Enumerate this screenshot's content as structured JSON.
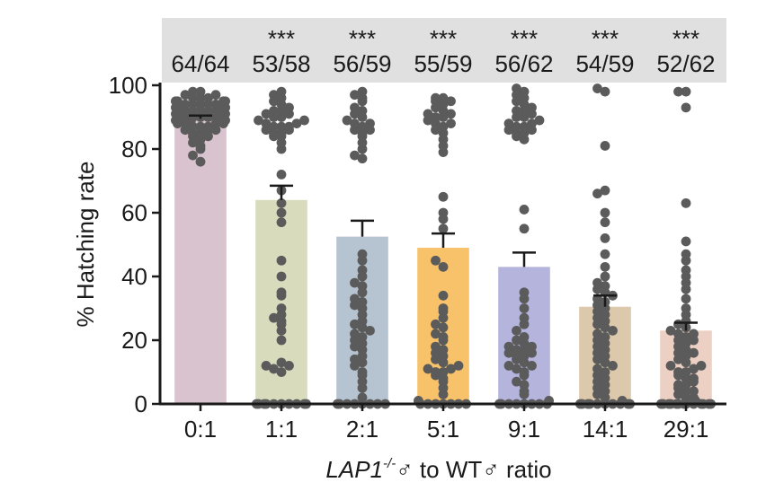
{
  "chart_data": {
    "type": "bar",
    "categories": [
      "0:1",
      "1:1",
      "2:1",
      "5:1",
      "9:1",
      "14:1",
      "29:1"
    ],
    "values": [
      89.5,
      64,
      52.5,
      49,
      43,
      30.5,
      23
    ],
    "error": [
      1,
      4.5,
      5,
      4.5,
      4.5,
      3.5,
      2.5
    ],
    "colors": [
      "#d8c3cf",
      "#d8dcbd",
      "#b6c3d1",
      "#f7c26a",
      "#b5b4dd",
      "#dcc8aa",
      "#ecd0c3"
    ],
    "counts": [
      "64/64",
      "53/58",
      "56/59",
      "55/59",
      "56/62",
      "54/59",
      "52/62"
    ],
    "significance": [
      "",
      "***",
      "***",
      "***",
      "***",
      "***",
      "***"
    ],
    "points": [
      [
        76,
        78,
        80,
        81,
        82,
        83,
        84,
        84,
        85,
        85,
        86,
        86,
        86,
        87,
        87,
        87,
        88,
        88,
        88,
        88,
        89,
        89,
        89,
        89,
        89,
        90,
        90,
        90,
        90,
        90,
        90,
        91,
        91,
        91,
        91,
        91,
        91,
        92,
        92,
        92,
        92,
        92,
        92,
        93,
        93,
        93,
        93,
        93,
        94,
        94,
        94,
        94,
        94,
        95,
        95,
        95,
        95,
        96,
        96,
        96,
        97,
        97,
        98,
        98
      ],
      [
        0,
        0,
        0,
        0,
        0,
        0,
        0,
        0,
        0,
        0,
        10,
        11,
        12,
        12,
        13,
        20,
        23,
        25,
        26,
        27,
        28,
        30,
        34,
        35,
        40,
        45,
        57,
        60,
        63,
        67,
        72,
        80,
        82,
        84,
        84,
        85,
        85,
        86,
        86,
        87,
        87,
        87,
        88,
        88,
        89,
        89,
        90,
        90,
        91,
        91,
        92,
        92,
        93,
        94,
        95,
        96,
        97,
        98
      ],
      [
        0,
        0,
        0,
        0,
        0,
        0,
        0,
        0,
        2,
        5,
        7,
        9,
        10,
        12,
        13,
        14,
        15,
        17,
        18,
        19,
        20,
        21,
        22,
        23,
        24,
        25,
        26,
        28,
        30,
        31,
        32,
        33,
        35,
        37,
        38,
        40,
        42,
        45,
        47,
        77,
        78,
        80,
        82,
        84,
        85,
        86,
        86,
        87,
        88,
        88,
        89,
        90,
        91,
        92,
        93,
        95,
        96,
        97,
        98
      ],
      [
        0,
        0,
        0,
        0,
        0,
        0,
        0,
        1,
        3,
        5,
        7,
        8,
        9,
        10,
        10,
        11,
        11,
        12,
        13,
        14,
        15,
        16,
        17,
        18,
        20,
        21,
        22,
        24,
        25,
        27,
        29,
        30,
        34,
        43,
        45,
        55,
        58,
        60,
        65,
        79,
        81,
        83,
        85,
        86,
        87,
        88,
        88,
        89,
        90,
        90,
        91,
        91,
        92,
        93,
        94,
        95,
        95,
        96,
        96
      ],
      [
        0,
        0,
        0,
        0,
        0,
        0,
        0,
        0,
        1,
        3,
        4,
        6,
        7,
        9,
        10,
        11,
        12,
        12,
        13,
        14,
        15,
        15,
        16,
        16,
        17,
        17,
        18,
        18,
        19,
        20,
        21,
        23,
        25,
        27,
        30,
        33,
        35,
        55,
        61,
        83,
        84,
        85,
        85,
        86,
        86,
        87,
        87,
        88,
        88,
        89,
        90,
        90,
        91,
        92,
        92,
        93,
        94,
        95,
        96,
        97,
        98,
        99
      ],
      [
        0,
        0,
        0,
        0,
        0,
        0,
        0,
        0,
        0,
        0,
        1,
        2,
        3,
        4,
        5,
        6,
        7,
        8,
        9,
        10,
        11,
        12,
        13,
        14,
        15,
        16,
        17,
        18,
        19,
        20,
        21,
        22,
        23,
        24,
        25,
        26,
        27,
        28,
        29,
        30,
        31,
        32,
        33,
        34,
        35,
        36,
        37,
        38,
        40,
        43,
        47,
        52,
        57,
        60,
        67,
        66,
        81,
        98,
        99
      ],
      [
        0,
        0,
        0,
        0,
        0,
        0,
        0,
        0,
        0,
        0,
        0,
        0,
        1,
        2,
        3,
        4,
        5,
        6,
        6,
        7,
        8,
        9,
        10,
        10,
        11,
        12,
        13,
        14,
        15,
        16,
        17,
        18,
        19,
        20,
        21,
        22,
        22,
        23,
        24,
        25,
        26,
        28,
        30,
        33,
        36,
        38,
        40,
        42,
        45,
        47,
        51,
        63,
        93,
        98,
        98,
        0,
        2,
        4,
        8,
        12,
        16,
        20
      ]
    ],
    "title": "",
    "xlabel_italic": "LAP1",
    "xlabel_sup": "-/-",
    "xlabel_rest": "♂ to WT♂ ratio",
    "ylabel": "% Hatching rate",
    "ylim": [
      0,
      100
    ],
    "yticks": [
      0,
      20,
      40,
      60,
      80,
      100
    ],
    "grid": false,
    "legend": "none"
  }
}
